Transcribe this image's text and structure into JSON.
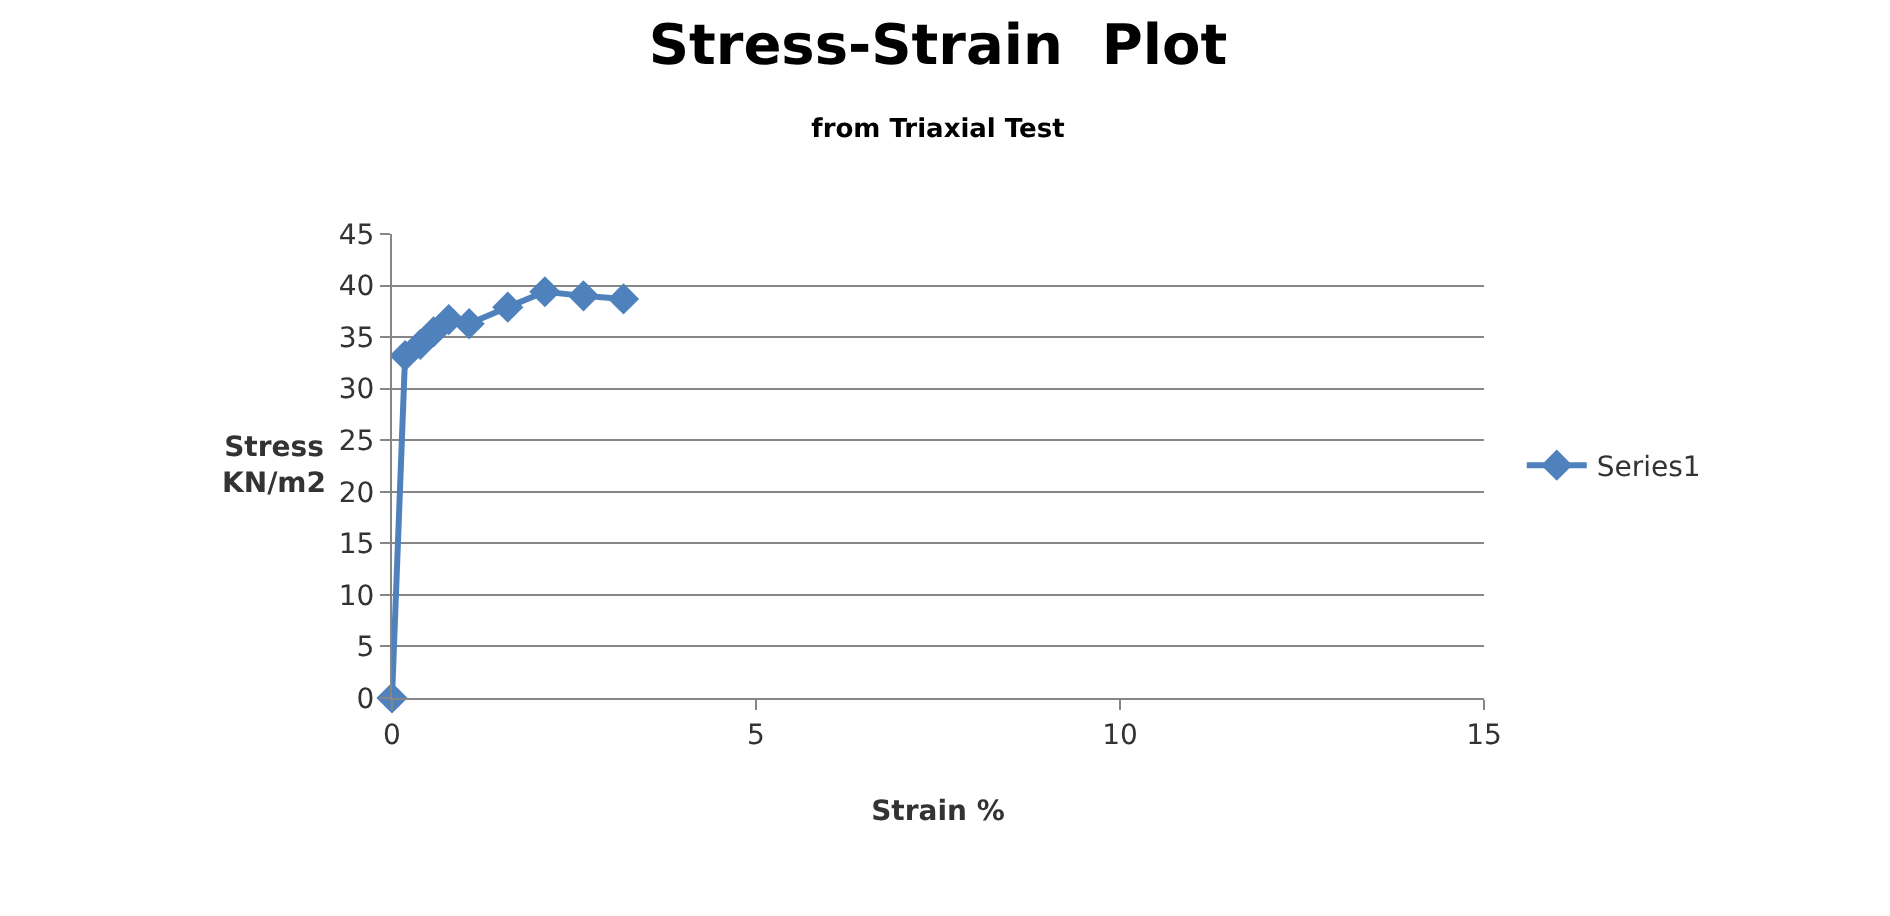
{
  "chart_data": {
    "type": "line",
    "title": "Stress-Strain  Plot",
    "subtitle": "from Triaxial Test",
    "xlabel": "Strain %",
    "ylabel": "Stress\nKN/m2",
    "x": [
      0,
      0.18,
      0.39,
      0.57,
      0.78,
      1.06,
      1.59,
      2.1,
      2.63,
      3.18
    ],
    "series": [
      {
        "name": "Series1",
        "color": "#4f81bd",
        "values": [
          0,
          33.2,
          34.3,
          35.5,
          36.7,
          36.3,
          37.9,
          39.4,
          39.0,
          38.7
        ]
      }
    ],
    "xlim": [
      0,
      15
    ],
    "xticks": [
      0,
      5,
      10,
      15
    ],
    "ylim": [
      0,
      45
    ],
    "yticks": [
      0,
      5,
      10,
      15,
      20,
      25,
      30,
      35,
      40,
      45
    ],
    "grid": "y",
    "legend": "right",
    "marker": "diamond",
    "line_style": "solid"
  }
}
